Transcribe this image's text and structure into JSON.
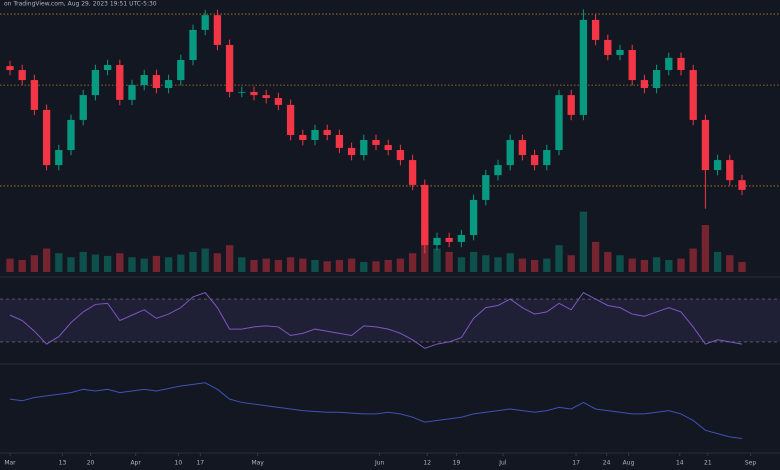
{
  "chart_data": {
    "type": "candlestick",
    "title": "on TradingView.com, Aug 29, 2023 19:51 UTC-5:30",
    "up_color": "#089981",
    "down_color": "#f23645",
    "level_color": "#f0a030",
    "rsi_color": "#7e57c2",
    "obv_color": "#3f51b5",
    "xlim": [
      0,
      60
    ],
    "xticks": [
      {
        "value": 0,
        "label": "Mar"
      },
      {
        "value": 4.3,
        "label": "13"
      },
      {
        "value": 6.6,
        "label": "20"
      },
      {
        "value": 10.3,
        "label": "Apr"
      },
      {
        "value": 13.8,
        "label": "10"
      },
      {
        "value": 15.6,
        "label": "17"
      },
      {
        "value": 20.3,
        "label": "May"
      },
      {
        "value": 30.3,
        "label": "Jun"
      },
      {
        "value": 34.2,
        "label": "12"
      },
      {
        "value": 36.6,
        "label": "19"
      },
      {
        "value": 40.4,
        "label": "Jul"
      },
      {
        "value": 46.4,
        "label": "17"
      },
      {
        "value": 48.9,
        "label": "24"
      },
      {
        "value": 50.7,
        "label": "Aug"
      },
      {
        "value": 54.9,
        "label": "14"
      },
      {
        "value": 57.2,
        "label": "21"
      },
      {
        "value": 60.7,
        "label": "Sep"
      }
    ],
    "ylim": [
      0,
      100
    ],
    "levels": [
      97.7,
      70.8,
      32.6
    ],
    "open": [
      78,
      76.5,
      72.7,
      61.4,
      40.5,
      46.2,
      57.6,
      67.0,
      76.5,
      78.4,
      65.2,
      70.8,
      74.6,
      69.7,
      72.7,
      80.3,
      91.7,
      97.3,
      86.0,
      68.2,
      68.2,
      67.0,
      65.9,
      63.3,
      51.9,
      50.0,
      53.8,
      51.9,
      47.0,
      44.3,
      50.0,
      48.1,
      46.2,
      42.4,
      33.0,
      10.2,
      12.9,
      11.4,
      14.0,
      27.3,
      36.7,
      40.5,
      50.0,
      44.3,
      40.5,
      46.2,
      67.0,
      59.5,
      95.5,
      87.9,
      82.2,
      84.1,
      72.7,
      69.7,
      76.5,
      81.1,
      76.5,
      57.6,
      38.6,
      42.4,
      34.8
    ],
    "high": [
      80,
      78.5,
      74.7,
      63.4,
      48.2,
      59.6,
      69,
      78.5,
      80.4,
      80.4,
      72.8,
      76.6,
      76.6,
      74.7,
      82.3,
      93.7,
      99.3,
      99.3,
      88,
      70.2,
      70.2,
      69,
      67.9,
      65.3,
      53.9,
      55.8,
      55.8,
      53.9,
      49,
      52,
      52,
      50.1,
      48.2,
      44.4,
      35,
      14.9,
      14.9,
      16,
      29.3,
      38.7,
      42.5,
      52,
      52,
      46.3,
      48.2,
      69,
      69,
      99.5,
      97.5,
      89.9,
      86.1,
      86.1,
      74.7,
      78.5,
      83.1,
      83.1,
      78.5,
      59.6,
      44.4,
      44.4,
      36.8
    ],
    "low": [
      74.5,
      70.7,
      59.4,
      38.5,
      38.5,
      44.2,
      55.6,
      65,
      74.5,
      63.2,
      63.2,
      68.8,
      67.7,
      67.7,
      70.7,
      78.3,
      89.7,
      84,
      66.2,
      66.2,
      65,
      63.9,
      61.3,
      49.9,
      48,
      48,
      49.9,
      45,
      42.3,
      42.3,
      46.1,
      44.2,
      40.4,
      31,
      7,
      8.2,
      9.4,
      9.4,
      12,
      25.3,
      34.7,
      38.5,
      42.3,
      38.5,
      38.5,
      44.2,
      57.5,
      57.5,
      85.9,
      80.2,
      80.2,
      70.7,
      67.7,
      67.7,
      74.5,
      74.5,
      55.6,
      24,
      36.6,
      32.8,
      29.1
    ],
    "close": [
      76.5,
      72.7,
      61.4,
      40.5,
      46.2,
      57.6,
      67.0,
      76.5,
      78.4,
      65.2,
      70.8,
      74.6,
      69.7,
      72.7,
      80.3,
      91.7,
      97.3,
      86.0,
      68.2,
      68.2,
      67.0,
      65.9,
      63.3,
      51.9,
      50.0,
      53.8,
      51.9,
      47.0,
      44.3,
      50.0,
      48.1,
      46.2,
      42.4,
      33.0,
      10.2,
      12.9,
      11.4,
      14.0,
      27.3,
      36.7,
      40.5,
      50.0,
      44.3,
      40.5,
      46.2,
      67.0,
      59.5,
      95.5,
      87.9,
      82.2,
      84.1,
      72.7,
      69.7,
      76.5,
      81.1,
      76.5,
      57.6,
      38.6,
      42.4,
      34.8,
      31.1
    ],
    "vlim": [
      0,
      100
    ],
    "volume": [
      20,
      18,
      25,
      35,
      28,
      22,
      30,
      26,
      24,
      28,
      22,
      20,
      24,
      22,
      26,
      30,
      35,
      28,
      40,
      22,
      18,
      20,
      18,
      22,
      20,
      18,
      16,
      18,
      20,
      15,
      16,
      18,
      20,
      28,
      70,
      35,
      30,
      22,
      30,
      25,
      22,
      28,
      20,
      18,
      20,
      40,
      25,
      90,
      45,
      30,
      25,
      20,
      18,
      22,
      18,
      20,
      35,
      70,
      30,
      25,
      15
    ],
    "rsi_ylim": [
      15,
      85
    ],
    "rsi_band": [
      30,
      70
    ],
    "rsi": [
      55,
      50,
      40,
      28,
      35,
      48,
      58,
      65,
      66,
      50,
      55,
      60,
      52,
      56,
      62,
      72,
      76,
      62,
      42,
      42,
      44,
      45,
      44,
      36,
      38,
      42,
      40,
      38,
      36,
      45,
      44,
      42,
      38,
      32,
      24,
      28,
      30,
      34,
      52,
      62,
      64,
      70,
      62,
      56,
      58,
      66,
      60,
      76,
      70,
      64,
      62,
      56,
      54,
      58,
      62,
      58,
      44,
      28,
      32,
      30,
      28
    ],
    "obv_ylim": [
      0,
      100
    ],
    "obv": [
      62,
      60,
      64,
      66,
      68,
      70,
      74,
      72,
      74,
      70,
      72,
      74,
      72,
      75,
      78,
      80,
      82,
      74,
      62,
      58,
      56,
      54,
      52,
      50,
      48,
      47,
      46,
      46,
      45,
      44,
      44,
      46,
      44,
      40,
      34,
      36,
      38,
      40,
      44,
      46,
      48,
      50,
      48,
      46,
      48,
      52,
      50,
      58,
      50,
      48,
      46,
      44,
      44,
      46,
      48,
      44,
      36,
      24,
      20,
      16,
      14
    ]
  }
}
